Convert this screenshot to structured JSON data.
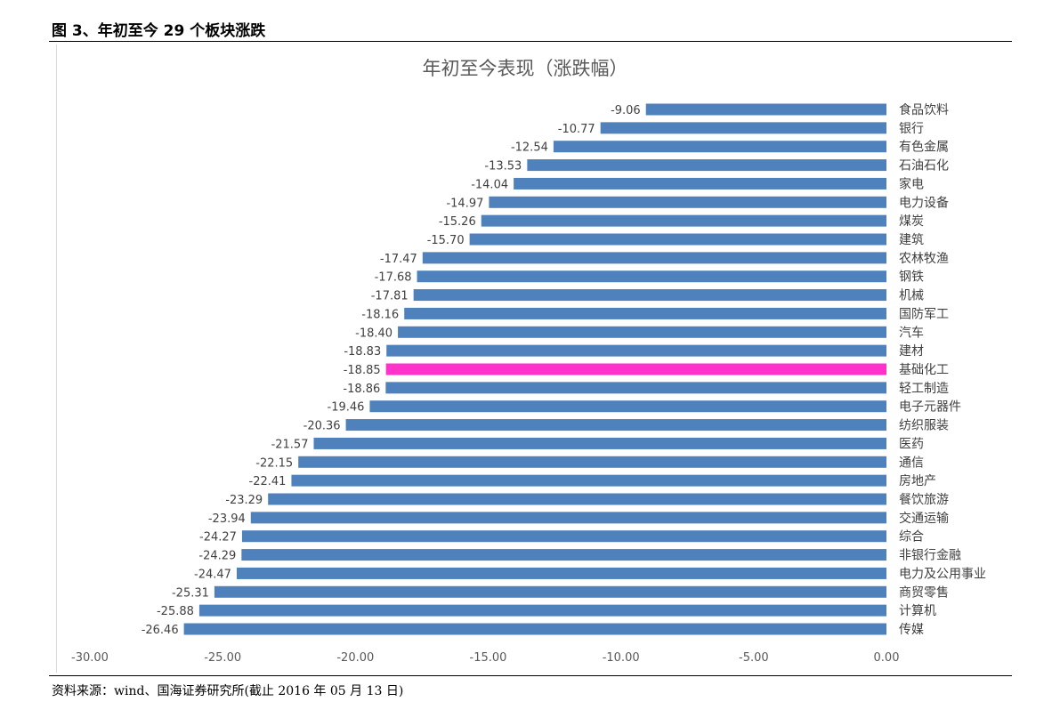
{
  "figure_title": "图 3、年初至今 29 个板块涨跌",
  "source": "资料来源：wind、国海证券研究所(截止 2016 年 05 月 13 日)",
  "chart_data": {
    "type": "bar",
    "orientation": "horizontal",
    "title": "年初至今表现（涨跌幅）",
    "categories": [
      "食品饮料",
      "银行",
      "有色金属",
      "石油石化",
      "家电",
      "电力设备",
      "煤炭",
      "建筑",
      "农林牧渔",
      "钢铁",
      "机械",
      "国防军工",
      "汽车",
      "建材",
      "基础化工",
      "轻工制造",
      "电子元器件",
      "纺织服装",
      "医药",
      "通信",
      "房地产",
      "餐饮旅游",
      "交通运输",
      "综合",
      "非银行金融",
      "电力及公用事业",
      "商贸零售",
      "计算机",
      "传媒"
    ],
    "values": [
      -9.06,
      -10.77,
      -12.54,
      -13.53,
      -14.04,
      -14.97,
      -15.26,
      -15.7,
      -17.47,
      -17.68,
      -17.81,
      -18.16,
      -18.4,
      -18.83,
      -18.85,
      -18.86,
      -19.46,
      -20.36,
      -21.57,
      -22.15,
      -22.41,
      -23.29,
      -23.94,
      -24.27,
      -24.29,
      -24.47,
      -25.31,
      -25.88,
      -26.46
    ],
    "highlight": "基础化工",
    "xlim": [
      -30,
      0
    ],
    "xticks": [
      "-30.00",
      "-25.00",
      "-20.00",
      "-15.00",
      "-10.00",
      "-5.00",
      "0.00"
    ],
    "grid": false,
    "colors": {
      "bar": "#4f81bd",
      "highlight": "#ff33cc"
    }
  }
}
